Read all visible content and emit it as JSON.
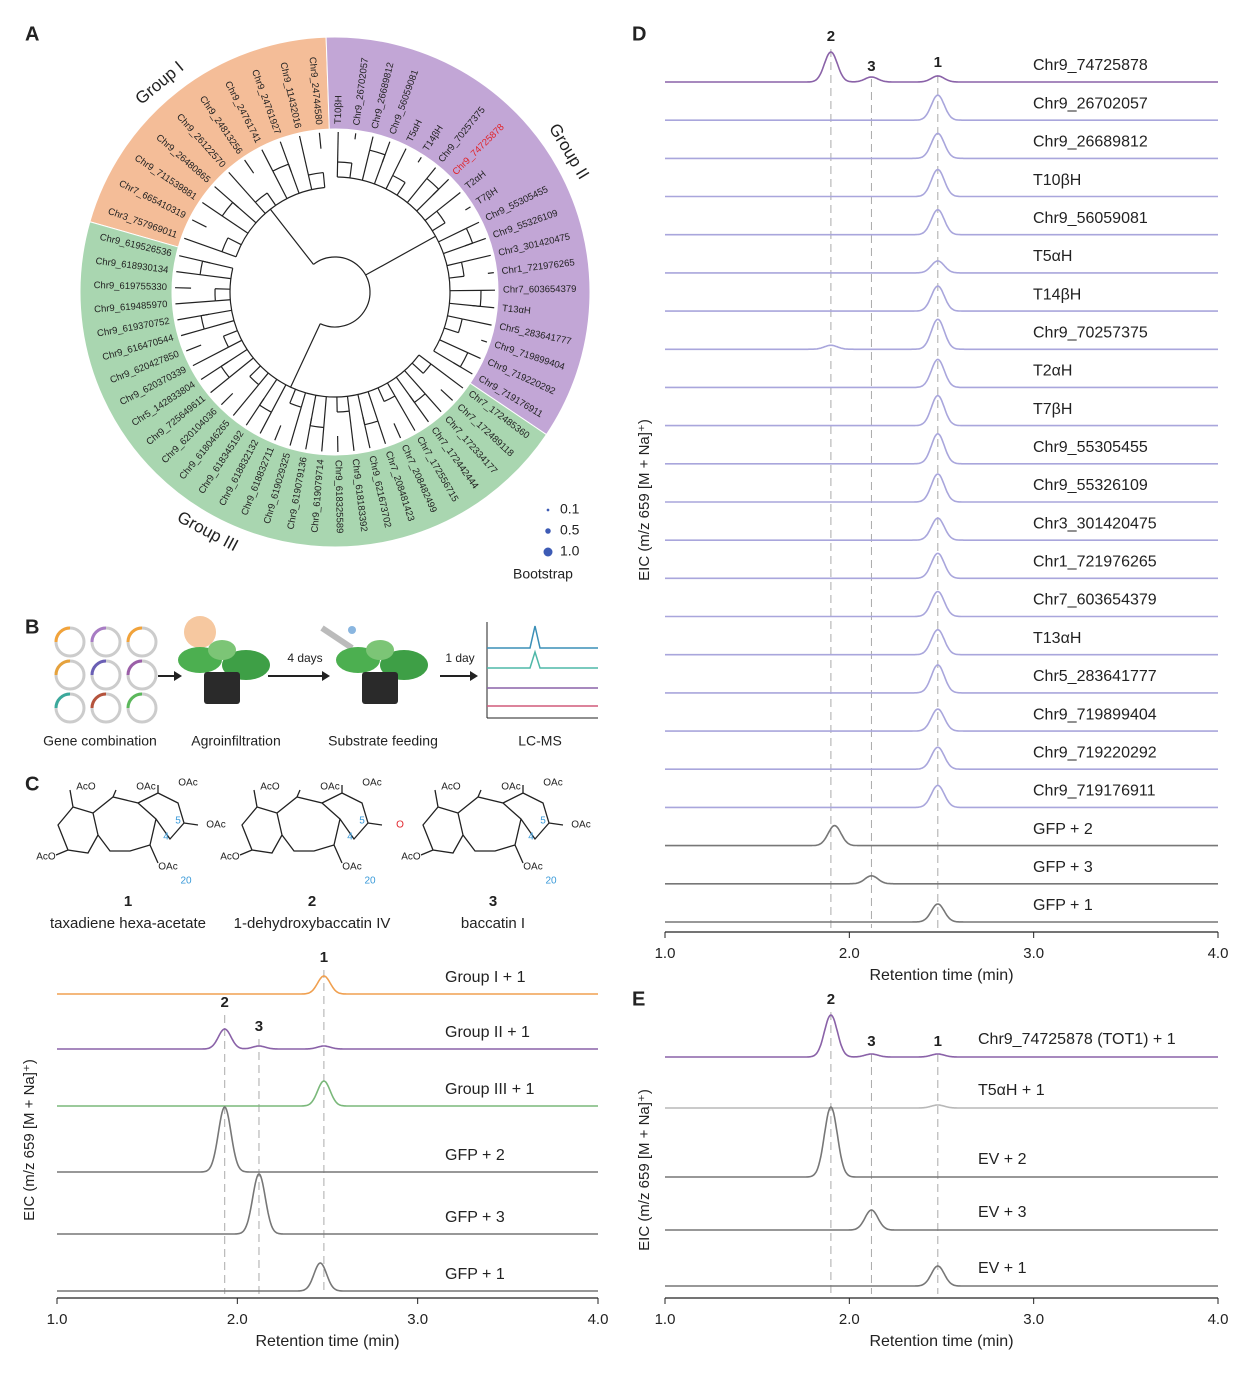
{
  "panels": [
    "A",
    "B",
    "C",
    "D",
    "E"
  ],
  "tree": {
    "groups": [
      {
        "name": "Group I",
        "color": "#f4bd98",
        "leaves": [
          "Chr3_757969011",
          "Chr7_665410319",
          "Chr9_711539881",
          "Chr9_26480865",
          "Chr9_26122570",
          "Chr9_24813256",
          "Chr9_24761741",
          "Chr9_24761927",
          "Chr9_11432016",
          "Chr9_24744580"
        ]
      },
      {
        "name": "Group II",
        "color": "#c2a6d6",
        "leaves": [
          "T10βH",
          "Chr9_26702057",
          "Chr9_26689812",
          "Chr9_56059081",
          "T5αH",
          "T14βH",
          "Chr9_70257375",
          "Chr9_74725878",
          "T2αH",
          "T7βH",
          "Chr9_55305455",
          "Chr9_55326109",
          "Chr3_301420475",
          "Chr1_721976265",
          "Chr7_603654379",
          "T13αH",
          "Chr5_283641777",
          "Chr9_719899404",
          "Chr9_719220292",
          "Chr9_719176911"
        ]
      },
      {
        "name": "Group III",
        "color": "#a9d6b0",
        "leaves": [
          "Chr7_172485360",
          "Chr7_172489118",
          "Chr7_172334177",
          "Chr7_172442444",
          "Chr7_172556715",
          "Chr7_208482499",
          "Chr7_208481423",
          "Chr9_621673702",
          "Chr9_618183392",
          "Chr9_618325589",
          "Chr9_619079714",
          "Chr9_619079136",
          "Chr9_619029325",
          "Chr9_618832711",
          "Chr9_618832132",
          "Chr9_618345192",
          "Chr9_618046265",
          "Chr9_620104036",
          "Chr9_725649611",
          "Chr5_142833804",
          "Chr9_620370339",
          "Chr9_620427850",
          "Chr9_616470544",
          "Chr9_619370752",
          "Chr9_619485970",
          "Chr9_619755330",
          "Chr9_618930134",
          "Chr9_619526536"
        ]
      }
    ],
    "highlight": {
      "group": 1,
      "leaf": 7,
      "color": "#e0242b"
    },
    "legend": {
      "title": "Bootstrap",
      "color": "#3d5bb5",
      "entries": [
        {
          "value": 0.1,
          "label": "0.1"
        },
        0.5,
        {
          "value": 1,
          "label": "1.0"
        }
      ]
    }
  },
  "workflow": {
    "steps": [
      "Gene combination",
      "Agroinfiltration",
      "Substrate feeding",
      "LC-MS"
    ],
    "intervals": [
      "4 days",
      "1 day"
    ]
  },
  "compounds": [
    {
      "number": "1",
      "name": "taxadiene hexa-acetate",
      "atoms": [
        {
          "text": "AcO"
        },
        {
          "text": "OAc"
        },
        {
          "text": "OAc"
        },
        {
          "text": "OAc"
        },
        {
          "text": "5",
          "color": "#3a9ad9"
        },
        {
          "text": "4",
          "color": "#3a9ad9"
        },
        {
          "text": "OAc"
        },
        {
          "text": "AcO"
        },
        {
          "text": "20",
          "color": "#3a9ad9"
        }
      ]
    },
    {
      "number": "2",
      "name": "1-dehydroxybaccatin IV",
      "atoms": [
        {
          "text": "AcO"
        },
        {
          "text": "OAc"
        },
        {
          "text": "OAc"
        },
        {
          "text": "O",
          "color": "#e0242b"
        },
        {
          "text": "5",
          "color": "#3a9ad9"
        },
        {
          "text": "4",
          "color": "#3a9ad9"
        },
        {
          "text": "OAc"
        },
        {
          "text": "AcO"
        },
        {
          "text": "20",
          "color": "#3a9ad9"
        }
      ]
    },
    {
      "number": "3",
      "name": "baccatin I",
      "atoms": [
        {
          "text": "AcO"
        },
        {
          "text": "OAc"
        },
        {
          "text": "OAc"
        },
        {
          "text": "OAc"
        },
        {
          "text": "5",
          "color": "#3a9ad9"
        },
        {
          "text": "4",
          "color": "#3a9ad9"
        },
        {
          "text": "OAc"
        },
        {
          "text": "AcO"
        },
        {
          "text": "20",
          "color": "#3a9ad9"
        }
      ]
    }
  ],
  "chart_c": {
    "type": "chromatogram",
    "x_label": "Retention time (min)",
    "y_label": "EIC (m/z 659 [M + Na]⁺)",
    "xlim": [
      1,
      4
    ],
    "xticks": [
      {
        "value": 1,
        "label": "1.0"
      },
      {
        "value": 2,
        "label": "2.0"
      },
      {
        "value": 3,
        "label": "3.0"
      },
      {
        "value": 4,
        "label": "4.0"
      }
    ],
    "markers": [
      {
        "label": "2",
        "x": 1.93
      },
      {
        "label": "3",
        "x": 2.12
      },
      {
        "label": "1",
        "x": 2.48
      }
    ],
    "traces": [
      {
        "name": "Group I + 1",
        "color": "#f0a050",
        "peaks": [
          {
            "x": 2.48,
            "height": 18
          }
        ]
      },
      {
        "name": "Group II + 1",
        "color": "#8a62a8",
        "peaks": [
          {
            "x": 1.93,
            "height": 20
          },
          {
            "x": 2.12,
            "height": 3
          },
          {
            "x": 2.48,
            "height": 3
          }
        ]
      },
      {
        "name": "Group III + 1",
        "color": "#7ab87a",
        "peaks": [
          {
            "x": 2.48,
            "height": 25
          }
        ]
      },
      {
        "name": "GFP + 2",
        "color": "#777777",
        "peaks": [
          {
            "x": 1.93,
            "height": 65
          }
        ]
      },
      {
        "name": "GFP + 3",
        "color": "#777777",
        "peaks": [
          {
            "x": 2.12,
            "height": 60
          }
        ]
      },
      {
        "name": "GFP + 1",
        "color": "#777777",
        "peaks": [
          {
            "x": 2.46,
            "height": 28
          }
        ]
      }
    ]
  },
  "chart_d": {
    "type": "chromatogram",
    "x_label": "Retention time (min)",
    "y_label": "EIC (m/z 659 [M + Na]⁺)",
    "xlim": [
      1,
      4
    ],
    "xticks": [
      {
        "value": 1,
        "label": "1.0"
      },
      {
        "value": 2,
        "label": "2.0"
      },
      {
        "value": 3,
        "label": "3.0"
      },
      {
        "value": 4,
        "label": "4.0"
      }
    ],
    "markers": [
      {
        "label": "2",
        "x": 1.9
      },
      {
        "label": "3",
        "x": 2.12
      },
      {
        "label": "1",
        "x": 2.48
      }
    ],
    "traces": [
      {
        "name": "Chr9_74725878",
        "color": "#8a62a8",
        "peaks": [
          {
            "x": 1.9,
            "height": 30
          },
          {
            "x": 2.12,
            "height": 5
          },
          {
            "x": 2.48,
            "height": 6
          }
        ]
      },
      {
        "name": "Chr9_26702057",
        "color": "#a9a6dc",
        "peaks": [
          {
            "x": 2.48,
            "height": 25
          }
        ]
      },
      {
        "name": "Chr9_26689812",
        "color": "#a9a6dc",
        "peaks": [
          {
            "x": 2.48,
            "height": 25
          }
        ]
      },
      {
        "name": "T10βH",
        "color": "#a9a6dc",
        "peaks": [
          {
            "x": 2.48,
            "height": 27
          }
        ]
      },
      {
        "name": "Chr9_56059081",
        "color": "#a9a6dc",
        "peaks": [
          {
            "x": 2.48,
            "height": 25
          }
        ]
      },
      {
        "name": "T5αH",
        "color": "#a9a6dc",
        "peaks": [
          {
            "x": 2.48,
            "height": 12
          }
        ]
      },
      {
        "name": "T14βH",
        "color": "#a9a6dc",
        "peaks": [
          {
            "x": 2.48,
            "height": 25
          }
        ]
      },
      {
        "name": "Chr9_70257375",
        "color": "#a9a6dc",
        "peaks": [
          {
            "x": 1.9,
            "height": 4
          },
          {
            "x": 2.48,
            "height": 30
          }
        ]
      },
      {
        "name": "T2αH",
        "color": "#a9a6dc",
        "peaks": [
          {
            "x": 2.48,
            "height": 28
          }
        ]
      },
      {
        "name": "T7βH",
        "color": "#a9a6dc",
        "peaks": [
          {
            "x": 2.48,
            "height": 30
          }
        ]
      },
      {
        "name": "Chr9_55305455",
        "color": "#a9a6dc",
        "peaks": [
          {
            "x": 2.48,
            "height": 30
          }
        ]
      },
      {
        "name": "Chr9_55326109",
        "color": "#a9a6dc",
        "peaks": [
          {
            "x": 2.48,
            "height": 28
          }
        ]
      },
      {
        "name": "Chr3_301420475",
        "color": "#a9a6dc",
        "peaks": [
          {
            "x": 2.48,
            "height": 22
          }
        ]
      },
      {
        "name": "Chr1_721976265",
        "color": "#a9a6dc",
        "peaks": [
          {
            "x": 2.48,
            "height": 25
          }
        ]
      },
      {
        "name": "Chr7_603654379",
        "color": "#a9a6dc",
        "peaks": [
          {
            "x": 2.48,
            "height": 25
          }
        ]
      },
      {
        "name": "T13αH",
        "color": "#a9a6dc",
        "peaks": [
          {
            "x": 2.48,
            "height": 25
          }
        ]
      },
      {
        "name": "Chr5_283641777",
        "color": "#a9a6dc",
        "peaks": [
          {
            "x": 2.48,
            "height": 28
          }
        ]
      },
      {
        "name": "Chr9_719899404",
        "color": "#a9a6dc",
        "peaks": [
          {
            "x": 2.48,
            "height": 22
          }
        ]
      },
      {
        "name": "Chr9_719220292",
        "color": "#a9a6dc",
        "peaks": [
          {
            "x": 2.48,
            "height": 22
          }
        ]
      },
      {
        "name": "Chr9_719176911",
        "color": "#a9a6dc",
        "peaks": [
          {
            "x": 2.48,
            "height": 22
          }
        ]
      },
      {
        "name": "GFP + 2",
        "color": "#777777",
        "peaks": [
          {
            "x": 1.92,
            "height": 20
          }
        ]
      },
      {
        "name": "GFP + 3",
        "color": "#777777",
        "peaks": [
          {
            "x": 2.12,
            "height": 8
          }
        ]
      },
      {
        "name": "GFP + 1",
        "color": "#777777",
        "peaks": [
          {
            "x": 2.48,
            "height": 18
          }
        ]
      }
    ]
  },
  "chart_e": {
    "type": "chromatogram",
    "x_label": "Retention time (min)",
    "y_label": "EIC (m/z 659 [M + Na]⁺)",
    "xlim": [
      1,
      4
    ],
    "xticks": [
      {
        "value": 1,
        "label": "1.0"
      },
      {
        "value": 2,
        "label": "2.0"
      },
      {
        "value": 3,
        "label": "3.0"
      },
      {
        "value": 4,
        "label": "4.0"
      }
    ],
    "markers": [
      {
        "label": "2",
        "x": 1.9
      },
      {
        "label": "3",
        "x": 2.12
      },
      {
        "label": "1",
        "x": 2.48
      }
    ],
    "traces": [
      {
        "name": "Chr9_74725878 (TOT1) + 1",
        "color": "#8a62a8",
        "peaks": [
          {
            "x": 1.9,
            "height": 42
          },
          {
            "x": 2.12,
            "height": 3
          },
          {
            "x": 2.48,
            "height": 3
          }
        ]
      },
      {
        "name": "T5αH + 1",
        "color": "#b8b8b8",
        "peaks": [
          {
            "x": 2.48,
            "height": 3
          }
        ]
      },
      {
        "name": "EV + 2",
        "color": "#777777",
        "peaks": [
          {
            "x": 1.9,
            "height": 70
          }
        ]
      },
      {
        "name": "EV + 3",
        "color": "#777777",
        "peaks": [
          {
            "x": 2.12,
            "height": 20
          }
        ]
      },
      {
        "name": "EV + 1",
        "color": "#777777",
        "peaks": [
          {
            "x": 2.48,
            "height": 20
          }
        ]
      }
    ]
  }
}
